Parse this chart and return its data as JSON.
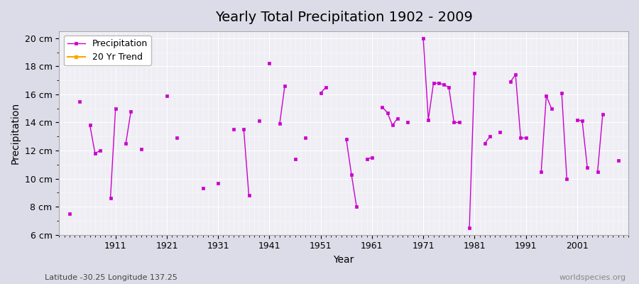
{
  "title": "Yearly Total Precipitation 1902 - 2009",
  "xlabel": "Year",
  "ylabel": "Precipitation",
  "footnote_left": "Latitude -30.25 Longitude 137.25",
  "footnote_right": "worldspecies.org",
  "ylim": [
    6,
    20.5
  ],
  "yticks": [
    6,
    8,
    10,
    12,
    14,
    16,
    18,
    20
  ],
  "ytick_labels": [
    "6 cm",
    "8 cm",
    "10 cm",
    "12 cm",
    "14 cm",
    "16 cm",
    "18 cm",
    "20 cm"
  ],
  "line_color": "#cc00cc",
  "marker_color": "#cc00cc",
  "trend_color": "#ffa500",
  "bg_color": "#eeeef4",
  "grid_color": "#ffffff",
  "fig_bg": "#dcdce8",
  "years": [
    1902,
    1904,
    1906,
    1907,
    1908,
    1910,
    1911,
    1913,
    1914,
    1916,
    1921,
    1923,
    1928,
    1931,
    1934,
    1936,
    1937,
    1939,
    1941,
    1943,
    1944,
    1946,
    1948,
    1951,
    1952,
    1956,
    1957,
    1958,
    1960,
    1961,
    1963,
    1964,
    1965,
    1966,
    1968,
    1971,
    1972,
    1973,
    1974,
    1975,
    1976,
    1977,
    1978,
    1980,
    1981,
    1983,
    1984,
    1986,
    1988,
    1989,
    1990,
    1991,
    1994,
    1995,
    1996,
    1998,
    1999,
    2001,
    2002,
    2003,
    2005,
    2006,
    2009
  ],
  "precip": [
    7.5,
    15.5,
    13.8,
    11.8,
    12.0,
    8.6,
    15.0,
    12.5,
    14.8,
    12.1,
    15.9,
    12.9,
    9.3,
    9.7,
    13.5,
    13.5,
    8.8,
    14.1,
    18.2,
    13.9,
    16.6,
    11.4,
    12.9,
    16.1,
    16.5,
    12.8,
    10.3,
    8.0,
    11.4,
    11.5,
    15.1,
    14.7,
    13.8,
    14.3,
    14.0,
    20.0,
    14.2,
    16.8,
    16.8,
    16.7,
    16.5,
    14.0,
    14.0,
    6.5,
    17.5,
    12.5,
    13.0,
    13.3,
    16.9,
    17.4,
    12.9,
    12.9,
    10.5,
    15.9,
    15.0,
    16.1,
    10.0,
    14.2,
    14.1,
    10.8,
    10.5,
    14.6,
    11.3
  ]
}
